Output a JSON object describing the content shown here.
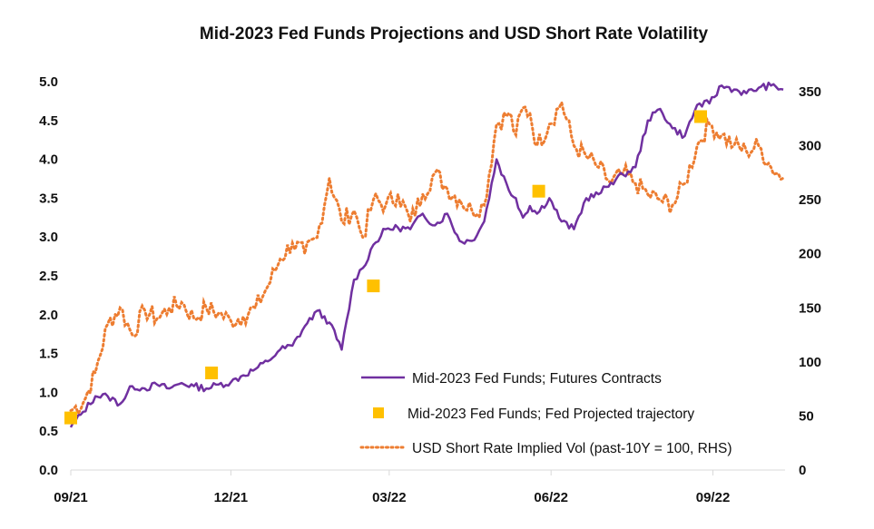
{
  "chart_data": {
    "type": "line",
    "title": "Mid-2023 Fed Funds Projections and USD Short Rate Volatility",
    "xlabel": "",
    "ylabel": "",
    "y2label": "",
    "x_tick_labels": [
      "09/21",
      "12/21",
      "03/22",
      "06/22",
      "09/22"
    ],
    "x_range": [
      "2021-09-01",
      "2022-10-12"
    ],
    "ylim": [
      0.0,
      5.0
    ],
    "y_ticks": [
      "0.0",
      "0.5",
      "1.0",
      "1.5",
      "2.0",
      "2.5",
      "3.0",
      "3.5",
      "4.0",
      "4.5",
      "5.0"
    ],
    "y2lim": [
      0,
      350
    ],
    "y2_ticks": [
      "0",
      "50",
      "100",
      "150",
      "200",
      "250",
      "300",
      "350"
    ],
    "grid": false,
    "legend_position": "lower-right",
    "series": [
      {
        "name": "Mid-2023 Fed Funds; Futures Contracts",
        "axis": "left",
        "style": "solid-line",
        "color": "#7030a0",
        "x": [
          "2021-09-01",
          "2021-09-08",
          "2021-09-15",
          "2021-09-22",
          "2021-09-29",
          "2021-10-06",
          "2021-10-13",
          "2021-10-20",
          "2021-10-27",
          "2021-11-03",
          "2021-11-10",
          "2021-11-17",
          "2021-11-24",
          "2021-12-01",
          "2021-12-08",
          "2021-12-15",
          "2021-12-22",
          "2021-12-29",
          "2022-01-05",
          "2022-01-12",
          "2022-01-19",
          "2022-01-26",
          "2022-02-02",
          "2022-02-09",
          "2022-02-14",
          "2022-02-20",
          "2022-02-27",
          "2022-03-06",
          "2022-03-13",
          "2022-03-20",
          "2022-03-27",
          "2022-04-03",
          "2022-04-10",
          "2022-04-17",
          "2022-04-24",
          "2022-05-01",
          "2022-05-08",
          "2022-05-12",
          "2022-05-16",
          "2022-05-20",
          "2022-05-24",
          "2022-05-31",
          "2022-06-07",
          "2022-06-14",
          "2022-06-21",
          "2022-06-28",
          "2022-07-05",
          "2022-07-12",
          "2022-07-19",
          "2022-07-26",
          "2022-08-02",
          "2022-08-09",
          "2022-08-16",
          "2022-08-23",
          "2022-08-30",
          "2022-09-06",
          "2022-09-13",
          "2022-09-20",
          "2022-09-27",
          "2022-10-04",
          "2022-10-11"
        ],
        "y": [
          0.55,
          0.75,
          0.95,
          0.95,
          0.85,
          1.08,
          1.05,
          1.1,
          1.05,
          1.12,
          1.08,
          1.05,
          1.1,
          1.13,
          1.22,
          1.3,
          1.4,
          1.55,
          1.6,
          1.85,
          2.05,
          1.9,
          1.55,
          2.45,
          2.6,
          2.9,
          3.1,
          3.12,
          3.1,
          3.3,
          3.15,
          3.3,
          2.95,
          2.95,
          3.2,
          4.0,
          3.6,
          3.5,
          3.25,
          3.4,
          3.3,
          3.5,
          3.2,
          3.1,
          3.5,
          3.55,
          3.7,
          3.8,
          3.9,
          4.5,
          4.65,
          4.4,
          4.3,
          4.7,
          4.72,
          4.95,
          4.9,
          4.85,
          4.92,
          4.95,
          4.9
        ]
      },
      {
        "name": "Mid-2023 Fed Funds; Fed Projected trajectory",
        "axis": "left",
        "style": "square-markers",
        "color": "#ffc000",
        "x": [
          "2021-09-01",
          "2021-11-20",
          "2022-02-20",
          "2022-05-25",
          "2022-08-25"
        ],
        "y": [
          0.67,
          1.25,
          2.37,
          3.59,
          4.55
        ]
      },
      {
        "name": "USD Short Rate Implied Vol (past-10Y = 100, RHS)",
        "axis": "right",
        "style": "dotted-line",
        "color": "#ed7d31",
        "x": [
          "2021-09-01",
          "2021-09-08",
          "2021-09-15",
          "2021-09-22",
          "2021-09-29",
          "2021-10-06",
          "2021-10-13",
          "2021-10-20",
          "2021-10-27",
          "2021-11-03",
          "2021-11-10",
          "2021-11-17",
          "2021-11-24",
          "2021-12-01",
          "2021-12-08",
          "2021-12-15",
          "2021-12-22",
          "2021-12-29",
          "2022-01-05",
          "2022-01-12",
          "2022-01-19",
          "2022-01-26",
          "2022-02-02",
          "2022-02-09",
          "2022-02-14",
          "2022-02-20",
          "2022-02-27",
          "2022-03-06",
          "2022-03-13",
          "2022-03-20",
          "2022-03-27",
          "2022-04-03",
          "2022-04-10",
          "2022-04-17",
          "2022-04-24",
          "2022-05-01",
          "2022-05-08",
          "2022-05-12",
          "2022-05-16",
          "2022-05-20",
          "2022-05-24",
          "2022-05-31",
          "2022-06-07",
          "2022-06-14",
          "2022-06-21",
          "2022-06-28",
          "2022-07-05",
          "2022-07-12",
          "2022-07-19",
          "2022-07-26",
          "2022-08-02",
          "2022-08-09",
          "2022-08-16",
          "2022-08-23",
          "2022-08-30",
          "2022-09-06",
          "2022-09-13",
          "2022-09-20",
          "2022-09-27",
          "2022-10-04",
          "2022-10-11"
        ],
        "y": [
          55,
          62,
          90,
          135,
          150,
          125,
          148,
          140,
          150,
          155,
          140,
          150,
          145,
          138,
          142,
          150,
          170,
          195,
          210,
          200,
          215,
          270,
          230,
          240,
          215,
          250,
          245,
          255,
          230,
          255,
          275,
          260,
          250,
          240,
          245,
          320,
          330,
          310,
          335,
          330,
          300,
          320,
          340,
          300,
          290,
          280,
          265,
          275,
          265,
          255,
          250,
          245,
          265,
          300,
          320,
          310,
          300,
          295,
          300,
          280,
          270
        ]
      }
    ]
  }
}
